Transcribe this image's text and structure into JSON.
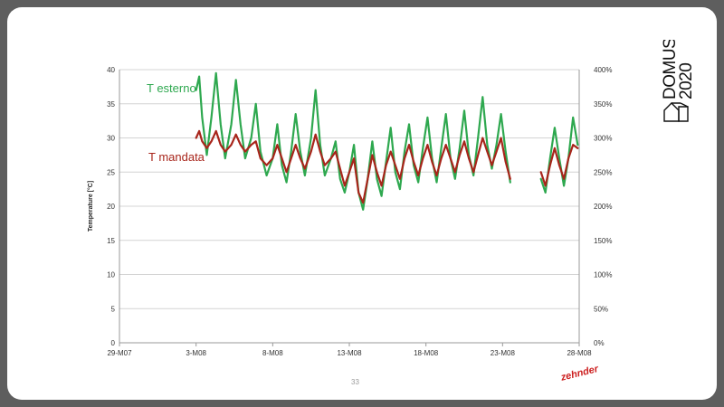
{
  "logo": {
    "line1": "DOMUS",
    "line2": "2020"
  },
  "brand": "zehnder",
  "page_number": "33",
  "colors": {
    "t_esterno": "#2ea84f",
    "t_mandata": "#a8251b",
    "grid": "#d4d4d4",
    "frame": "#5e5e5e"
  },
  "chart_data": {
    "type": "line",
    "ylabel": "Temperature [°C]",
    "ylim": [
      0,
      40
    ],
    "y_ticks": [
      "0",
      "5",
      "10",
      "15",
      "20",
      "25",
      "30",
      "35",
      "40"
    ],
    "y2lim": [
      0,
      400
    ],
    "y2_ticks": [
      "0%",
      "50%",
      "100%",
      "150%",
      "200%",
      "250%",
      "300%",
      "350%",
      "400%"
    ],
    "xlim_days": [
      0,
      30
    ],
    "x_ticks": [
      {
        "day": 0,
        "label": "29-M07"
      },
      {
        "day": 5,
        "label": "3-M08"
      },
      {
        "day": 10,
        "label": "8-M08"
      },
      {
        "day": 15,
        "label": "13-M08"
      },
      {
        "day": 20,
        "label": "18-M08"
      },
      {
        "day": 25,
        "label": "23-M08"
      },
      {
        "day": 30,
        "label": "28-M08"
      }
    ],
    "grid": true,
    "series": [
      {
        "name": "T esterno",
        "segments": [
          [
            [
              5.0,
              37
            ],
            [
              5.2,
              39
            ],
            [
              5.4,
              33
            ],
            [
              5.7,
              27.5
            ],
            [
              6.0,
              33
            ],
            [
              6.3,
              39.5
            ],
            [
              6.6,
              32
            ],
            [
              6.9,
              27
            ],
            [
              7.3,
              32
            ],
            [
              7.6,
              38.5
            ],
            [
              7.9,
              32
            ],
            [
              8.2,
              27
            ],
            [
              8.6,
              30
            ],
            [
              8.9,
              35
            ],
            [
              9.2,
              28
            ],
            [
              9.6,
              24.5
            ],
            [
              10.0,
              27
            ],
            [
              10.3,
              32
            ],
            [
              10.6,
              26
            ],
            [
              10.9,
              23.5
            ],
            [
              11.2,
              28
            ],
            [
              11.5,
              33.5
            ],
            [
              11.8,
              28
            ],
            [
              12.1,
              24.5
            ],
            [
              12.5,
              30
            ],
            [
              12.8,
              37
            ],
            [
              13.1,
              29
            ],
            [
              13.4,
              24.5
            ],
            [
              13.8,
              27
            ],
            [
              14.1,
              29.5
            ],
            [
              14.4,
              24
            ],
            [
              14.7,
              22
            ],
            [
              15.0,
              25
            ],
            [
              15.3,
              29
            ],
            [
              15.6,
              22
            ],
            [
              15.9,
              19.5
            ],
            [
              16.2,
              24
            ],
            [
              16.5,
              29.5
            ],
            [
              16.8,
              24
            ],
            [
              17.1,
              21.5
            ],
            [
              17.4,
              26.5
            ],
            [
              17.7,
              31.5
            ],
            [
              18.0,
              25
            ],
            [
              18.3,
              22.5
            ],
            [
              18.6,
              28
            ],
            [
              18.9,
              32
            ],
            [
              19.2,
              26
            ],
            [
              19.5,
              23.5
            ],
            [
              19.8,
              28.5
            ],
            [
              20.1,
              33
            ],
            [
              20.4,
              27
            ],
            [
              20.7,
              23.5
            ],
            [
              21.0,
              28.5
            ],
            [
              21.3,
              33.5
            ],
            [
              21.6,
              27
            ],
            [
              21.9,
              24
            ],
            [
              22.2,
              28.5
            ],
            [
              22.5,
              34
            ],
            [
              22.8,
              27.5
            ],
            [
              23.1,
              24.5
            ],
            [
              23.4,
              30
            ],
            [
              23.7,
              36
            ],
            [
              24.0,
              29
            ],
            [
              24.3,
              25.5
            ],
            [
              24.6,
              29
            ],
            [
              24.9,
              33.5
            ],
            [
              25.2,
              28
            ],
            [
              25.5,
              23.5
            ]
          ],
          [
            [
              27.5,
              24
            ],
            [
              27.8,
              22
            ],
            [
              28.1,
              27
            ],
            [
              28.4,
              31.5
            ],
            [
              28.7,
              27
            ],
            [
              29.0,
              23
            ],
            [
              29.3,
              27
            ],
            [
              29.6,
              33
            ],
            [
              29.9,
              29
            ]
          ]
        ]
      },
      {
        "name": "T mandata",
        "segments": [
          [
            [
              5.0,
              30
            ],
            [
              5.2,
              31
            ],
            [
              5.4,
              29.5
            ],
            [
              5.7,
              28.5
            ],
            [
              6.0,
              29.5
            ],
            [
              6.3,
              31
            ],
            [
              6.6,
              29
            ],
            [
              6.9,
              28
            ],
            [
              7.3,
              29
            ],
            [
              7.6,
              30.5
            ],
            [
              7.9,
              29
            ],
            [
              8.2,
              28
            ],
            [
              8.6,
              29
            ],
            [
              8.9,
              29.5
            ],
            [
              9.2,
              27
            ],
            [
              9.6,
              26
            ],
            [
              10.0,
              27
            ],
            [
              10.3,
              29
            ],
            [
              10.6,
              27
            ],
            [
              10.9,
              25
            ],
            [
              11.2,
              27
            ],
            [
              11.5,
              29
            ],
            [
              11.8,
              27
            ],
            [
              12.1,
              25.5
            ],
            [
              12.5,
              28
            ],
            [
              12.8,
              30.5
            ],
            [
              13.1,
              28
            ],
            [
              13.4,
              26
            ],
            [
              13.8,
              27
            ],
            [
              14.1,
              28
            ],
            [
              14.4,
              25.5
            ],
            [
              14.7,
              23
            ],
            [
              15.0,
              25
            ],
            [
              15.3,
              27
            ],
            [
              15.6,
              22
            ],
            [
              15.9,
              20.5
            ],
            [
              16.2,
              24
            ],
            [
              16.5,
              27.5
            ],
            [
              16.8,
              25
            ],
            [
              17.1,
              23
            ],
            [
              17.4,
              26
            ],
            [
              17.7,
              28
            ],
            [
              18.0,
              26
            ],
            [
              18.3,
              24
            ],
            [
              18.6,
              27
            ],
            [
              18.9,
              29
            ],
            [
              19.2,
              26.5
            ],
            [
              19.5,
              24.5
            ],
            [
              19.8,
              27
            ],
            [
              20.1,
              29
            ],
            [
              20.4,
              26.5
            ],
            [
              20.7,
              24.5
            ],
            [
              21.0,
              27
            ],
            [
              21.3,
              29
            ],
            [
              21.6,
              27
            ],
            [
              21.9,
              25
            ],
            [
              22.2,
              27.5
            ],
            [
              22.5,
              29.5
            ],
            [
              22.8,
              27
            ],
            [
              23.1,
              25
            ],
            [
              23.4,
              27.5
            ],
            [
              23.7,
              30
            ],
            [
              24.0,
              28
            ],
            [
              24.3,
              26
            ],
            [
              24.6,
              28
            ],
            [
              24.9,
              30
            ],
            [
              25.2,
              26.5
            ],
            [
              25.5,
              24
            ]
          ],
          [
            [
              27.5,
              25
            ],
            [
              27.8,
              23
            ],
            [
              28.1,
              26
            ],
            [
              28.4,
              28.5
            ],
            [
              28.7,
              26
            ],
            [
              29.0,
              24
            ],
            [
              29.3,
              27
            ],
            [
              29.6,
              29
            ],
            [
              29.9,
              28.5
            ]
          ]
        ]
      }
    ],
    "annotations": [
      {
        "text": "T esterno",
        "series": 0
      },
      {
        "text": "T mandata",
        "series": 1
      }
    ]
  }
}
